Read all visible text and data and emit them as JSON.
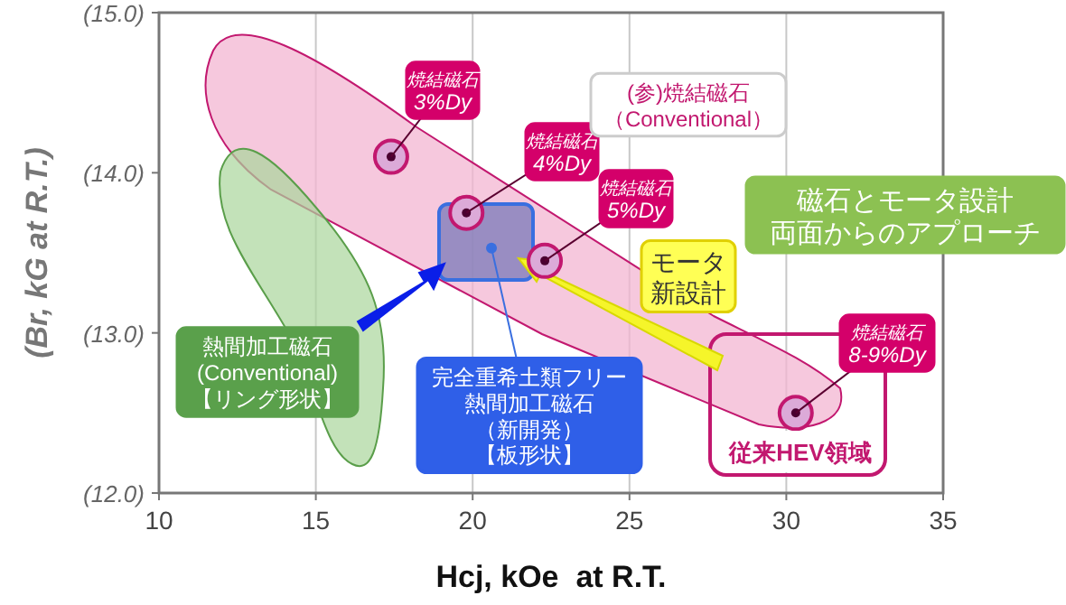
{
  "chart_data": {
    "type": "scatter",
    "xlabel": "Hcj, kOe  at R.T.",
    "ylabel": "(Br, kG at R.T.)",
    "xlim": [
      10,
      35
    ],
    "xticks": [
      10,
      15,
      20,
      25,
      30,
      35
    ],
    "ylim": [
      12,
      15
    ],
    "yticks": [
      {
        "value": 12,
        "label": "(12.0)"
      },
      {
        "value": 13,
        "label": "(13.0)"
      },
      {
        "value": 14,
        "label": "(14.0)"
      },
      {
        "value": 15,
        "label": "(15.0)"
      }
    ],
    "grid": "x",
    "marker": "circle",
    "series": [
      {
        "x": [
          17.4,
          19.8,
          22.3,
          30.3
        ],
        "values": [
          14.1,
          13.75,
          13.45,
          12.5
        ],
        "color": "#c2186f"
      },
      {
        "x": [
          20.6
        ],
        "values": [
          13.53
        ],
        "color": "#3a6fe0"
      }
    ],
    "annotations": [
      {
        "text": "焼結磁石\n3%Dy",
        "x": 17.4,
        "y": 14.1
      },
      {
        "text": "焼結磁石\n4%Dy",
        "x": 19.8,
        "y": 13.75
      },
      {
        "text": "焼結磁石\n5%Dy",
        "x": 22.3,
        "y": 13.45
      },
      {
        "text": "焼結磁石\n8-9%Dy",
        "x": 30.3,
        "y": 12.5
      },
      "(参)焼結磁石（Conventional）",
      "磁石とモータ設計両面からのアプローチ",
      "モータ新設計",
      "熱間加工磁石\n(Conventional)\n【リング形状】",
      {
        "text": "完全重希土類フリー熱間加工磁石（新開発）【板形状】",
        "x": 20.6,
        "y": 13.53
      },
      "従来HEV領域"
    ]
  }
}
